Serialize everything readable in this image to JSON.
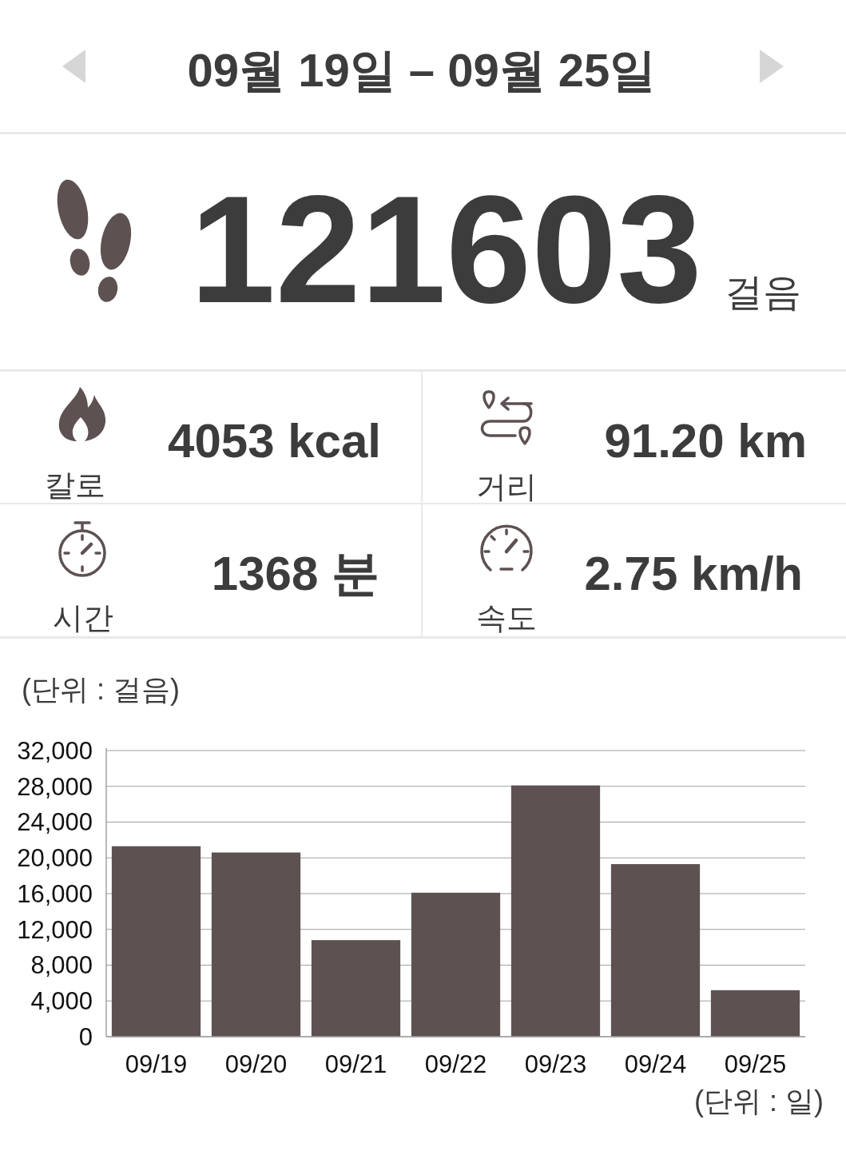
{
  "chart_data": [
    {
      "type": "other",
      "title": "09월 19일 – 09월 25일",
      "annotations": [
        "121603",
        "걸음",
        "칼로",
        "4053 kcal",
        "거리",
        "91.20 km",
        "시간",
        "1368 분",
        "속도",
        "2.75 km/h"
      ]
    },
    {
      "type": "bar",
      "ylabel": "(단위 : 걸음)",
      "xlabel": "(단위 : 일)",
      "categories": [
        "09/19",
        "09/20",
        "09/21",
        "09/22",
        "09/23",
        "09/24",
        "09/25"
      ],
      "values": [
        21300,
        20600,
        10800,
        16100,
        28100,
        19300,
        5200
      ],
      "color": "#5e5151",
      "ylim": [
        0,
        32000
      ],
      "yticks": [
        0,
        {
          "value": 4000,
          "label": "4,000"
        },
        {
          "value": 8000,
          "label": "8,000"
        },
        {
          "value": 12000,
          "label": "12,000"
        },
        {
          "value": 16000,
          "label": "16,000"
        },
        {
          "value": 20000,
          "label": "20,000"
        },
        {
          "value": 24000,
          "label": "24,000"
        },
        {
          "value": 28000,
          "label": "28,000"
        },
        {
          "value": 32000,
          "label": "32,000"
        }
      ],
      "grid": "y"
    }
  ]
}
